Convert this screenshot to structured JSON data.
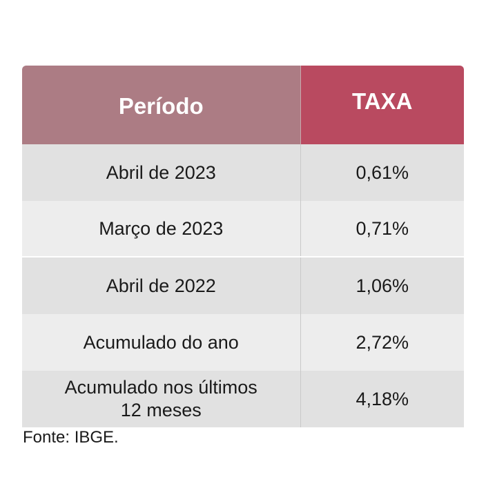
{
  "chart_data": {
    "type": "table",
    "columns": [
      "Período",
      "TAXA"
    ],
    "rows": [
      {
        "period": "Abril de 2023",
        "rate": "0,61%"
      },
      {
        "period": "Março de 2023",
        "rate": "0,71%"
      },
      {
        "period": "Abril de 2022",
        "rate": "1,06%"
      },
      {
        "period": "Acumulado do ano",
        "rate": "2,72%"
      },
      {
        "period_line1": "Acumulado nos últimos",
        "period_line2": "12 meses",
        "rate": "4,18%"
      }
    ],
    "header_colors": [
      "#ac7c84",
      "#b94a60"
    ],
    "row_colors": [
      "#e1e1e1",
      "#ededed"
    ]
  },
  "source": "Fonte: IBGE."
}
